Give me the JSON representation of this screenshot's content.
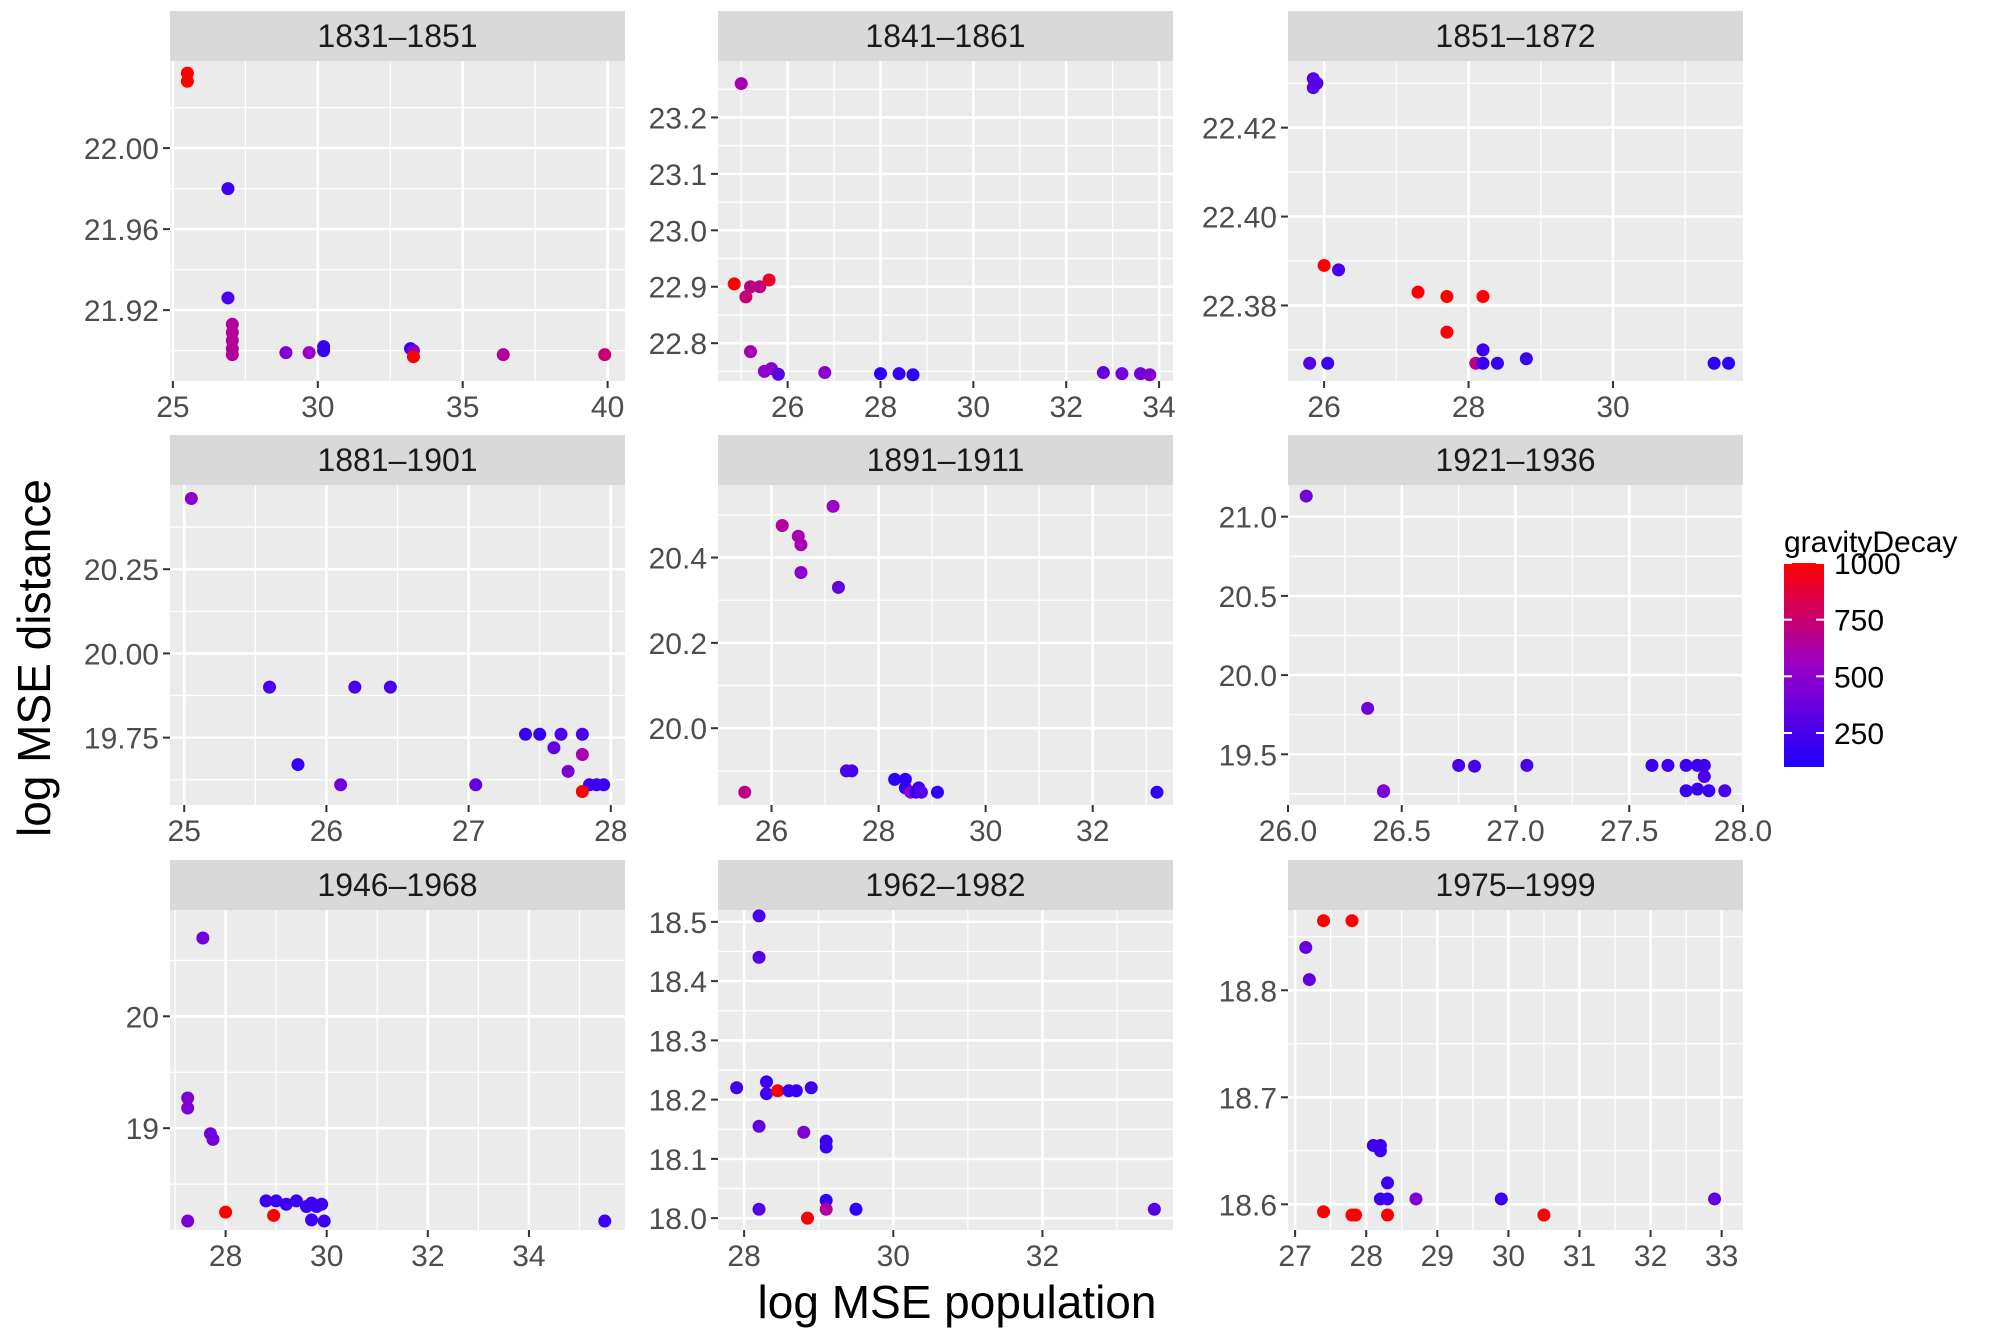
{
  "chart_data": {
    "type": "scatter",
    "xlabel": "log MSE population",
    "ylabel": "log MSE distance",
    "colors": {
      "low": "#1f00ff",
      "mid": "#9b00c8",
      "high": "#ff0000",
      "panel_bg": "#ebebeb",
      "strip_bg": "#d9d9d9"
    },
    "legend": {
      "title": "gravityDecay",
      "breaks": [
        250,
        500,
        750,
        1000
      ],
      "range": [
        100,
        1000
      ],
      "position": "right"
    },
    "panels": [
      {
        "label": "1831–1851",
        "xlim": [
          24.9,
          40.6
        ],
        "ylim": [
          21.885,
          22.043
        ],
        "xticks": [
          25,
          30,
          35,
          40
        ],
        "yticks": [
          21.92,
          21.96,
          22.0
        ],
        "points": [
          [
            25.5,
            22.037,
            1000
          ],
          [
            25.5,
            22.033,
            1000
          ],
          [
            26.9,
            21.98,
            220
          ],
          [
            26.9,
            21.926,
            250
          ],
          [
            27.05,
            21.913,
            650
          ],
          [
            27.05,
            21.909,
            650
          ],
          [
            27.05,
            21.905,
            650
          ],
          [
            27.05,
            21.901,
            650
          ],
          [
            27.05,
            21.898,
            650
          ],
          [
            28.9,
            21.899,
            450
          ],
          [
            29.7,
            21.899,
            550
          ],
          [
            30.2,
            21.902,
            180
          ],
          [
            30.2,
            21.9,
            180
          ],
          [
            33.2,
            21.901,
            200
          ],
          [
            33.3,
            21.9,
            450
          ],
          [
            33.3,
            21.897,
            1000
          ],
          [
            36.4,
            21.898,
            650
          ],
          [
            39.9,
            21.898,
            750
          ]
        ]
      },
      {
        "label": "1841–1861",
        "xlim": [
          24.5,
          34.3
        ],
        "ylim": [
          22.733,
          23.3
        ],
        "xticks": [
          26,
          28,
          30,
          32,
          34
        ],
        "yticks": [
          22.8,
          22.9,
          23.0,
          23.1,
          23.2
        ],
        "points": [
          [
            25.0,
            23.26,
            600
          ],
          [
            24.85,
            22.905,
            1000
          ],
          [
            25.1,
            22.882,
            750
          ],
          [
            25.2,
            22.9,
            700
          ],
          [
            25.4,
            22.9,
            700
          ],
          [
            25.6,
            22.912,
            900
          ],
          [
            25.2,
            22.785,
            600
          ],
          [
            25.5,
            22.75,
            500
          ],
          [
            25.65,
            22.755,
            500
          ],
          [
            25.8,
            22.745,
            300
          ],
          [
            26.8,
            22.748,
            500
          ],
          [
            28.0,
            22.746,
            150
          ],
          [
            28.4,
            22.746,
            180
          ],
          [
            28.7,
            22.744,
            150
          ],
          [
            32.8,
            22.748,
            350
          ],
          [
            33.2,
            22.746,
            400
          ],
          [
            33.6,
            22.746,
            400
          ],
          [
            33.8,
            22.744,
            450
          ]
        ]
      },
      {
        "label": "1851–1872",
        "xlim": [
          25.5,
          31.8
        ],
        "ylim": [
          22.363,
          22.435
        ],
        "xticks": [
          26,
          28,
          30
        ],
        "yticks": [
          22.38,
          22.4,
          22.42
        ],
        "points": [
          [
            25.85,
            22.431,
            300
          ],
          [
            25.85,
            22.429,
            300
          ],
          [
            25.9,
            22.43,
            300
          ],
          [
            26.0,
            22.389,
            1000
          ],
          [
            26.2,
            22.388,
            250
          ],
          [
            27.3,
            22.383,
            1000
          ],
          [
            27.7,
            22.382,
            1000
          ],
          [
            28.2,
            22.382,
            1000
          ],
          [
            27.7,
            22.374,
            1000
          ],
          [
            25.8,
            22.367,
            300
          ],
          [
            26.05,
            22.367,
            200
          ],
          [
            28.1,
            22.367,
            700
          ],
          [
            28.2,
            22.37,
            200
          ],
          [
            28.2,
            22.367,
            180
          ],
          [
            28.4,
            22.367,
            180
          ],
          [
            28.8,
            22.368,
            180
          ],
          [
            31.4,
            22.367,
            150
          ],
          [
            31.6,
            22.367,
            150
          ]
        ]
      },
      {
        "label": "1881–1901",
        "xlim": [
          24.9,
          28.1
        ],
        "ylim": [
          19.55,
          20.5
        ],
        "xticks": [
          25,
          26,
          27,
          28
        ],
        "yticks": [
          19.75,
          20.0,
          20.25
        ],
        "points": [
          [
            25.05,
            20.46,
            500
          ],
          [
            25.6,
            19.9,
            250
          ],
          [
            26.2,
            19.9,
            250
          ],
          [
            26.45,
            19.9,
            250
          ],
          [
            25.8,
            19.67,
            180
          ],
          [
            26.1,
            19.61,
            400
          ],
          [
            27.05,
            19.61,
            350
          ],
          [
            27.4,
            19.76,
            180
          ],
          [
            27.5,
            19.76,
            180
          ],
          [
            27.6,
            19.72,
            350
          ],
          [
            27.65,
            19.76,
            250
          ],
          [
            27.8,
            19.76,
            250
          ],
          [
            27.7,
            19.65,
            450
          ],
          [
            27.8,
            19.7,
            600
          ],
          [
            27.85,
            19.61,
            200
          ],
          [
            27.9,
            19.61,
            200
          ],
          [
            27.95,
            19.61,
            200
          ],
          [
            27.8,
            19.59,
            1000
          ]
        ]
      },
      {
        "label": "1891–1911",
        "xlim": [
          25.0,
          33.5
        ],
        "ylim": [
          19.82,
          20.57
        ],
        "xticks": [
          26,
          28,
          30,
          32
        ],
        "yticks": [
          20.0,
          20.2,
          20.4
        ],
        "points": [
          [
            25.5,
            19.85,
            700
          ],
          [
            26.2,
            20.475,
            650
          ],
          [
            26.5,
            20.45,
            600
          ],
          [
            26.55,
            20.43,
            600
          ],
          [
            26.55,
            20.365,
            500
          ],
          [
            27.15,
            20.52,
            550
          ],
          [
            27.25,
            20.33,
            350
          ],
          [
            27.4,
            19.9,
            250
          ],
          [
            27.5,
            19.9,
            250
          ],
          [
            28.3,
            19.88,
            150
          ],
          [
            28.5,
            19.88,
            150
          ],
          [
            28.5,
            19.86,
            150
          ],
          [
            28.6,
            19.85,
            500
          ],
          [
            28.7,
            19.85,
            200
          ],
          [
            28.75,
            19.86,
            200
          ],
          [
            28.8,
            19.85,
            300
          ],
          [
            29.1,
            19.85,
            150
          ],
          [
            33.2,
            19.85,
            150
          ]
        ]
      },
      {
        "label": "1921–1936",
        "xlim": [
          26.0,
          28.0
        ],
        "ylim": [
          19.18,
          21.2
        ],
        "xticks": [
          26.0,
          26.5,
          27.0,
          27.5,
          28.0
        ],
        "yticks": [
          19.5,
          20.0,
          20.5,
          21.0
        ],
        "points": [
          [
            26.08,
            21.13,
            400
          ],
          [
            26.35,
            19.79,
            400
          ],
          [
            26.42,
            19.27,
            450
          ],
          [
            26.42,
            19.265,
            450
          ],
          [
            26.75,
            19.43,
            250
          ],
          [
            26.82,
            19.425,
            250
          ],
          [
            27.05,
            19.43,
            250
          ],
          [
            27.6,
            19.43,
            200
          ],
          [
            27.67,
            19.43,
            200
          ],
          [
            27.75,
            19.43,
            200
          ],
          [
            27.8,
            19.43,
            200
          ],
          [
            27.83,
            19.43,
            200
          ],
          [
            27.75,
            19.27,
            200
          ],
          [
            27.8,
            19.28,
            200
          ],
          [
            27.83,
            19.36,
            250
          ],
          [
            27.85,
            19.27,
            200
          ],
          [
            27.92,
            19.27,
            250
          ]
        ]
      },
      {
        "label": "1946–1968",
        "xlim": [
          26.9,
          35.9
        ],
        "ylim": [
          18.09,
          20.95
        ],
        "xticks": [
          28,
          30,
          32,
          34
        ],
        "yticks": [
          19,
          20
        ],
        "points": [
          [
            27.55,
            20.7,
            400
          ],
          [
            27.25,
            19.27,
            450
          ],
          [
            27.25,
            19.18,
            450
          ],
          [
            27.7,
            18.95,
            400
          ],
          [
            27.75,
            18.9,
            400
          ],
          [
            27.25,
            18.17,
            450
          ],
          [
            28.0,
            18.25,
            1000
          ],
          [
            28.95,
            18.22,
            1000
          ],
          [
            28.8,
            18.35,
            200
          ],
          [
            29.0,
            18.35,
            200
          ],
          [
            29.2,
            18.32,
            200
          ],
          [
            29.4,
            18.35,
            200
          ],
          [
            29.6,
            18.3,
            200
          ],
          [
            29.7,
            18.33,
            200
          ],
          [
            29.8,
            18.3,
            200
          ],
          [
            29.9,
            18.32,
            200
          ],
          [
            29.7,
            18.18,
            200
          ],
          [
            29.95,
            18.17,
            200
          ],
          [
            35.5,
            18.17,
            200
          ]
        ]
      },
      {
        "label": "1962–1982",
        "xlim": [
          27.65,
          33.75
        ],
        "ylim": [
          17.98,
          18.52
        ],
        "xticks": [
          28,
          30,
          32
        ],
        "yticks": [
          18.0,
          18.1,
          18.2,
          18.3,
          18.4,
          18.5
        ],
        "points": [
          [
            28.2,
            18.51,
            250
          ],
          [
            28.2,
            18.44,
            300
          ],
          [
            27.9,
            18.22,
            200
          ],
          [
            28.3,
            18.23,
            200
          ],
          [
            28.3,
            18.21,
            200
          ],
          [
            28.45,
            18.215,
            1000
          ],
          [
            28.6,
            18.215,
            180
          ],
          [
            28.7,
            18.215,
            180
          ],
          [
            28.9,
            18.22,
            200
          ],
          [
            28.2,
            18.155,
            350
          ],
          [
            28.8,
            18.145,
            450
          ],
          [
            29.1,
            18.12,
            200
          ],
          [
            29.1,
            18.13,
            200
          ],
          [
            29.1,
            18.03,
            150
          ],
          [
            28.2,
            18.015,
            300
          ],
          [
            28.85,
            18.0,
            1000
          ],
          [
            29.1,
            18.015,
            650
          ],
          [
            29.5,
            18.015,
            150
          ],
          [
            33.5,
            18.015,
            300
          ]
        ]
      },
      {
        "label": "1975–1999",
        "xlim": [
          26.9,
          33.3
        ],
        "ylim": [
          18.576,
          18.875
        ],
        "xticks": [
          27,
          28,
          29,
          30,
          31,
          32,
          33
        ],
        "yticks": [
          18.6,
          18.7,
          18.8
        ],
        "points": [
          [
            27.15,
            18.84,
            350
          ],
          [
            27.2,
            18.81,
            350
          ],
          [
            27.4,
            18.865,
            1000
          ],
          [
            27.8,
            18.865,
            1000
          ],
          [
            28.1,
            18.655,
            200
          ],
          [
            28.2,
            18.655,
            200
          ],
          [
            28.2,
            18.65,
            200
          ],
          [
            28.3,
            18.62,
            200
          ],
          [
            28.2,
            18.605,
            200
          ],
          [
            28.3,
            18.605,
            200
          ],
          [
            27.4,
            18.593,
            1000
          ],
          [
            27.8,
            18.59,
            1000
          ],
          [
            27.85,
            18.59,
            1000
          ],
          [
            28.3,
            18.59,
            1000
          ],
          [
            28.7,
            18.605,
            450
          ],
          [
            29.9,
            18.605,
            200
          ],
          [
            30.5,
            18.59,
            1000
          ],
          [
            32.9,
            18.605,
            350
          ]
        ]
      }
    ]
  }
}
